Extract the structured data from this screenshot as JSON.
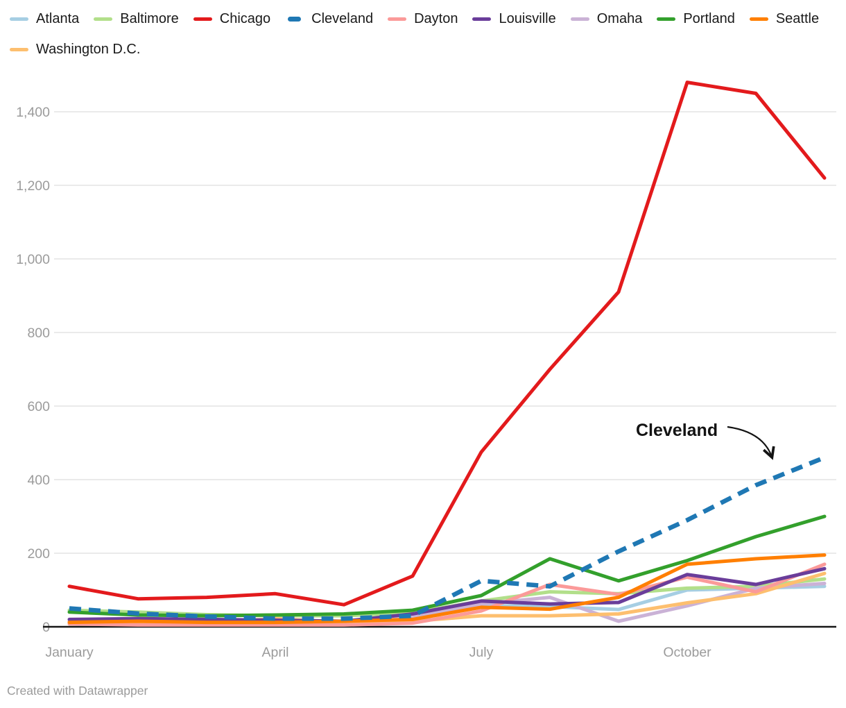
{
  "legend": {
    "items": [
      {
        "label": "Atlanta",
        "color": "#a6cee3",
        "dashed": false
      },
      {
        "label": "Baltimore",
        "color": "#b2df8a",
        "dashed": false
      },
      {
        "label": "Chicago",
        "color": "#e31a1c",
        "dashed": false
      },
      {
        "label": "Cleveland",
        "color": "#1f78b4",
        "dashed": true
      },
      {
        "label": "Dayton",
        "color": "#fb9a99",
        "dashed": false
      },
      {
        "label": "Louisville",
        "color": "#6a3d9a",
        "dashed": false
      },
      {
        "label": "Omaha",
        "color": "#cab2d6",
        "dashed": false
      },
      {
        "label": "Portland",
        "color": "#33a02c",
        "dashed": false
      },
      {
        "label": "Seattle",
        "color": "#ff7f00",
        "dashed": false
      },
      {
        "label": "Washington D.C.",
        "color": "#fdbf6f",
        "dashed": false
      }
    ]
  },
  "chart_data": {
    "type": "line",
    "x": [
      "January",
      "February",
      "March",
      "April",
      "May",
      "June",
      "July",
      "August",
      "September",
      "October",
      "November",
      "December"
    ],
    "x_tick_labels": [
      {
        "index": 0,
        "label": "January"
      },
      {
        "index": 3,
        "label": "April"
      },
      {
        "index": 6,
        "label": "July"
      },
      {
        "index": 9,
        "label": "October"
      }
    ],
    "y_ticks": [
      {
        "value": 0,
        "label": "0"
      },
      {
        "value": 200,
        "label": "200"
      },
      {
        "value": 400,
        "label": "400"
      },
      {
        "value": 600,
        "label": "600"
      },
      {
        "value": 800,
        "label": "800"
      },
      {
        "value": 1000,
        "label": "1,000"
      },
      {
        "value": 1200,
        "label": "1,200"
      },
      {
        "value": 1400,
        "label": "1,400"
      }
    ],
    "ylim": [
      0,
      1480
    ],
    "grid": true,
    "legend_position": "top",
    "series": [
      {
        "name": "Atlanta",
        "color": "#a6cee3",
        "style": "solid",
        "values": [
          12,
          10,
          8,
          8,
          8,
          20,
          58,
          55,
          47,
          100,
          105,
          110
        ]
      },
      {
        "name": "Baltimore",
        "color": "#b2df8a",
        "style": "solid",
        "values": [
          45,
          40,
          33,
          30,
          30,
          38,
          70,
          95,
          90,
          105,
          110,
          130
        ]
      },
      {
        "name": "Chicago",
        "color": "#e31a1c",
        "style": "solid",
        "values": [
          110,
          76,
          80,
          90,
          60,
          138,
          475,
          700,
          910,
          1480,
          1450,
          1220
        ]
      },
      {
        "name": "Cleveland",
        "color": "#1f78b4",
        "style": "dashed",
        "values": [
          50,
          36,
          28,
          22,
          22,
          30,
          125,
          110,
          205,
          290,
          385,
          460
        ]
      },
      {
        "name": "Dayton",
        "color": "#fb9a99",
        "style": "solid",
        "values": [
          8,
          5,
          5,
          5,
          5,
          10,
          43,
          115,
          88,
          135,
          95,
          170
        ]
      },
      {
        "name": "Louisville",
        "color": "#6a3d9a",
        "style": "solid",
        "values": [
          20,
          22,
          20,
          18,
          15,
          35,
          70,
          62,
          66,
          142,
          115,
          158
        ]
      },
      {
        "name": "Omaha",
        "color": "#cab2d6",
        "style": "solid",
        "values": [
          15,
          12,
          10,
          8,
          6,
          25,
          62,
          80,
          15,
          57,
          105,
          118
        ]
      },
      {
        "name": "Portland",
        "color": "#33a02c",
        "style": "solid",
        "values": [
          40,
          32,
          30,
          32,
          35,
          45,
          85,
          185,
          125,
          180,
          245,
          300
        ]
      },
      {
        "name": "Seattle",
        "color": "#ff7f00",
        "style": "solid",
        "values": [
          12,
          15,
          12,
          12,
          15,
          20,
          53,
          48,
          80,
          170,
          185,
          195
        ]
      },
      {
        "name": "Washington D.C.",
        "color": "#fdbf6f",
        "style": "solid",
        "values": [
          8,
          8,
          10,
          22,
          12,
          15,
          30,
          30,
          35,
          65,
          90,
          145
        ]
      }
    ],
    "annotation": {
      "label": "Cleveland",
      "target_series": "Cleveland"
    }
  },
  "footer": {
    "credit": "Created with Datawrapper"
  }
}
